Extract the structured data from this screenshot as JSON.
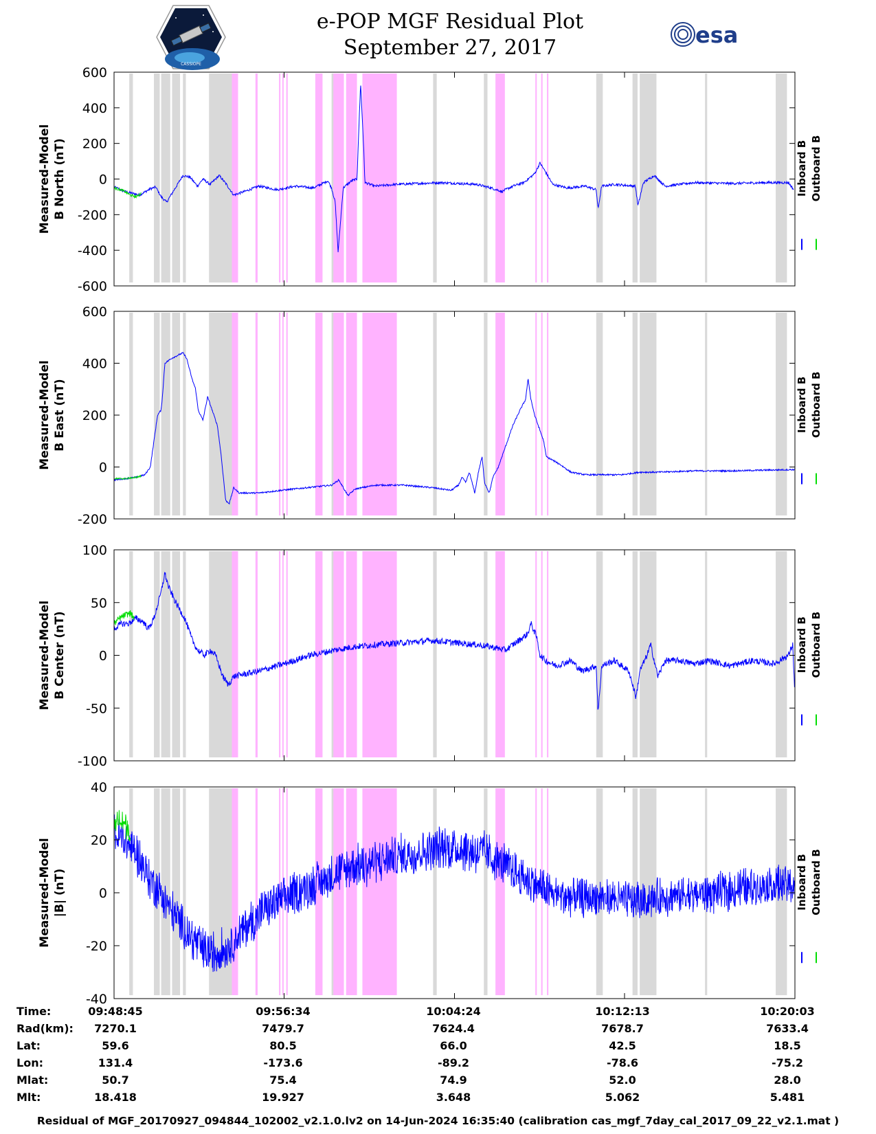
{
  "header": {
    "title_line1": "e-POP MGF Residual Plot",
    "title_line2": "September 27, 2017",
    "logo_left": "cassiope-mission-logo",
    "logo_left_text": "CASSIOPE",
    "logo_right": "esa-logo",
    "logo_right_text": "esa"
  },
  "colors": {
    "inboard": "#0000ff",
    "outboard": "#00dd00",
    "gray_band": "#d9d9d9",
    "magenta_band": "#ffb3ff"
  },
  "chart_data": {
    "type": "line",
    "x_range_seconds": [
      0,
      1878
    ],
    "x_ticks": [
      {
        "t": 0,
        "label": "09:48:45"
      },
      {
        "t": 469,
        "label": "09:56:34"
      },
      {
        "t": 939,
        "label": "10:04:24"
      },
      {
        "t": 1408,
        "label": "10:12:13"
      },
      {
        "t": 1878,
        "label": "10:20:03"
      }
    ],
    "legend": [
      "Inboard B",
      "Outboard B"
    ],
    "gray_bands": [
      [
        42,
        52
      ],
      [
        110,
        126
      ],
      [
        130,
        155
      ],
      [
        160,
        182
      ],
      [
        190,
        198
      ],
      [
        262,
        325
      ],
      [
        600,
        608
      ],
      [
        880,
        890
      ],
      [
        1020,
        1030
      ],
      [
        1330,
        1348
      ],
      [
        1430,
        1444
      ],
      [
        1450,
        1496
      ],
      [
        1630,
        1636
      ],
      [
        1825,
        1856
      ]
    ],
    "magenta_bands": [
      [
        325,
        342
      ],
      [
        390,
        396
      ],
      [
        455,
        459
      ],
      [
        464,
        467
      ],
      [
        475,
        479
      ],
      [
        555,
        575
      ],
      [
        605,
        634
      ],
      [
        640,
        670
      ],
      [
        685,
        780
      ],
      [
        1052,
        1078
      ],
      [
        1162,
        1166
      ],
      [
        1178,
        1182
      ],
      [
        1194,
        1198
      ]
    ],
    "panels": [
      {
        "name": "north",
        "ylabel": [
          "Measured-Model",
          "B North (nT)"
        ],
        "ylim": [
          -600,
          600
        ],
        "yticks": [
          600,
          400,
          200,
          0,
          -200,
          -400,
          -600
        ],
        "inboard": [
          [
            0,
            -45
          ],
          [
            30,
            -70
          ],
          [
            70,
            -90
          ],
          [
            100,
            -55
          ],
          [
            115,
            -45
          ],
          [
            130,
            -100
          ],
          [
            145,
            -130
          ],
          [
            160,
            -80
          ],
          [
            175,
            -30
          ],
          [
            190,
            20
          ],
          [
            210,
            10
          ],
          [
            230,
            -40
          ],
          [
            245,
            0
          ],
          [
            265,
            -30
          ],
          [
            290,
            20
          ],
          [
            310,
            -30
          ],
          [
            330,
            -90
          ],
          [
            360,
            -70
          ],
          [
            400,
            -40
          ],
          [
            450,
            -60
          ],
          [
            500,
            -40
          ],
          [
            550,
            -50
          ],
          [
            590,
            -10
          ],
          [
            600,
            -50
          ],
          [
            610,
            -130
          ],
          [
            618,
            -410
          ],
          [
            632,
            -50
          ],
          [
            655,
            -10
          ],
          [
            670,
            0
          ],
          [
            680,
            540
          ],
          [
            688,
            200
          ],
          [
            692,
            -20
          ],
          [
            720,
            -40
          ],
          [
            780,
            -30
          ],
          [
            900,
            -20
          ],
          [
            1000,
            -30
          ],
          [
            1040,
            -50
          ],
          [
            1070,
            -70
          ],
          [
            1100,
            -40
          ],
          [
            1130,
            -20
          ],
          [
            1160,
            30
          ],
          [
            1175,
            90
          ],
          [
            1190,
            40
          ],
          [
            1210,
            -30
          ],
          [
            1250,
            -50
          ],
          [
            1300,
            -40
          ],
          [
            1330,
            -60
          ],
          [
            1335,
            -170
          ],
          [
            1345,
            -40
          ],
          [
            1380,
            -30
          ],
          [
            1438,
            -40
          ],
          [
            1445,
            -150
          ],
          [
            1460,
            -20
          ],
          [
            1490,
            20
          ],
          [
            1520,
            -40
          ],
          [
            1600,
            -20
          ],
          [
            1700,
            -25
          ],
          [
            1800,
            -20
          ],
          [
            1860,
            -20
          ],
          [
            1875,
            -60
          ]
        ],
        "outboard": [
          [
            0,
            -50
          ],
          [
            25,
            -65
          ],
          [
            45,
            -90
          ],
          [
            60,
            -100
          ],
          [
            75,
            -80
          ]
        ],
        "noise": 14
      },
      {
        "name": "east",
        "ylabel": [
          "Measured-Model",
          "B East (nT)"
        ],
        "ylim": [
          -200,
          600
        ],
        "yticks": [
          600,
          400,
          200,
          0,
          -200
        ],
        "inboard": [
          [
            0,
            -50
          ],
          [
            60,
            -40
          ],
          [
            85,
            -30
          ],
          [
            100,
            0
          ],
          [
            110,
            100
          ],
          [
            120,
            200
          ],
          [
            130,
            220
          ],
          [
            135,
            300
          ],
          [
            140,
            400
          ],
          [
            160,
            420
          ],
          [
            190,
            440
          ],
          [
            200,
            420
          ],
          [
            215,
            340
          ],
          [
            225,
            300
          ],
          [
            232,
            220
          ],
          [
            245,
            180
          ],
          [
            258,
            270
          ],
          [
            268,
            230
          ],
          [
            285,
            160
          ],
          [
            295,
            50
          ],
          [
            303,
            -60
          ],
          [
            308,
            -130
          ],
          [
            318,
            -140
          ],
          [
            330,
            -80
          ],
          [
            345,
            -100
          ],
          [
            400,
            -100
          ],
          [
            460,
            -90
          ],
          [
            530,
            -80
          ],
          [
            600,
            -70
          ],
          [
            620,
            -50
          ],
          [
            645,
            -110
          ],
          [
            665,
            -85
          ],
          [
            720,
            -70
          ],
          [
            800,
            -70
          ],
          [
            880,
            -80
          ],
          [
            930,
            -90
          ],
          [
            950,
            -70
          ],
          [
            960,
            -40
          ],
          [
            970,
            -60
          ],
          [
            980,
            -20
          ],
          [
            995,
            -100
          ],
          [
            1005,
            -20
          ],
          [
            1015,
            40
          ],
          [
            1022,
            -60
          ],
          [
            1035,
            -100
          ],
          [
            1045,
            -40
          ],
          [
            1060,
            0
          ],
          [
            1080,
            80
          ],
          [
            1100,
            160
          ],
          [
            1120,
            220
          ],
          [
            1135,
            260
          ],
          [
            1142,
            340
          ],
          [
            1150,
            260
          ],
          [
            1160,
            200
          ],
          [
            1170,
            160
          ],
          [
            1185,
            100
          ],
          [
            1192,
            40
          ],
          [
            1205,
            30
          ],
          [
            1230,
            10
          ],
          [
            1260,
            -20
          ],
          [
            1300,
            -30
          ],
          [
            1350,
            -30
          ],
          [
            1400,
            -30
          ],
          [
            1450,
            -20
          ],
          [
            1500,
            -20
          ],
          [
            1600,
            -15
          ],
          [
            1700,
            -15
          ],
          [
            1800,
            -12
          ],
          [
            1878,
            -10
          ]
        ],
        "outboard": [
          [
            0,
            -45
          ],
          [
            30,
            -45
          ],
          [
            60,
            -40
          ],
          [
            75,
            -35
          ]
        ],
        "noise": 6
      },
      {
        "name": "center",
        "ylabel": [
          "Measured-Model",
          "B Center (nT)"
        ],
        "ylim": [
          -100,
          100
        ],
        "yticks": [
          100,
          50,
          0,
          -50,
          -100
        ],
        "inboard": [
          [
            0,
            25
          ],
          [
            20,
            30
          ],
          [
            40,
            30
          ],
          [
            60,
            35
          ],
          [
            80,
            32
          ],
          [
            95,
            25
          ],
          [
            110,
            35
          ],
          [
            130,
            60
          ],
          [
            140,
            78
          ],
          [
            150,
            65
          ],
          [
            170,
            50
          ],
          [
            195,
            35
          ],
          [
            215,
            15
          ],
          [
            230,
            5
          ],
          [
            250,
            0
          ],
          [
            265,
            5
          ],
          [
            280,
            0
          ],
          [
            300,
            -20
          ],
          [
            315,
            -28
          ],
          [
            330,
            -20
          ],
          [
            400,
            -15
          ],
          [
            470,
            -8
          ],
          [
            540,
            0
          ],
          [
            610,
            5
          ],
          [
            660,
            8
          ],
          [
            720,
            10
          ],
          [
            800,
            12
          ],
          [
            880,
            14
          ],
          [
            940,
            12
          ],
          [
            1000,
            10
          ],
          [
            1040,
            8
          ],
          [
            1080,
            5
          ],
          [
            1100,
            10
          ],
          [
            1140,
            20
          ],
          [
            1150,
            30
          ],
          [
            1165,
            18
          ],
          [
            1175,
            0
          ],
          [
            1190,
            -5
          ],
          [
            1220,
            -10
          ],
          [
            1260,
            -5
          ],
          [
            1290,
            -15
          ],
          [
            1330,
            -10
          ],
          [
            1335,
            -55
          ],
          [
            1345,
            -10
          ],
          [
            1380,
            -5
          ],
          [
            1420,
            -15
          ],
          [
            1440,
            -40
          ],
          [
            1450,
            -15
          ],
          [
            1470,
            0
          ],
          [
            1480,
            10
          ],
          [
            1500,
            -20
          ],
          [
            1520,
            -5
          ],
          [
            1560,
            -5
          ],
          [
            1600,
            -8
          ],
          [
            1640,
            -5
          ],
          [
            1700,
            -10
          ],
          [
            1760,
            -5
          ],
          [
            1820,
            -8
          ],
          [
            1860,
            0
          ],
          [
            1872,
            10
          ],
          [
            1878,
            -40
          ]
        ],
        "outboard": [
          [
            0,
            30
          ],
          [
            15,
            35
          ],
          [
            30,
            38
          ],
          [
            45,
            40
          ],
          [
            55,
            35
          ]
        ],
        "noise": 6
      },
      {
        "name": "total",
        "ylabel": [
          "Measured-Model",
          "|B| (nT)"
        ],
        "ylim": [
          -40,
          40
        ],
        "yticks": [
          40,
          20,
          0,
          -20,
          -40
        ],
        "inboard": [
          [
            0,
            22
          ],
          [
            30,
            20
          ],
          [
            60,
            15
          ],
          [
            100,
            5
          ],
          [
            150,
            -5
          ],
          [
            200,
            -15
          ],
          [
            250,
            -22
          ],
          [
            280,
            -23
          ],
          [
            320,
            -20
          ],
          [
            370,
            -12
          ],
          [
            430,
            -5
          ],
          [
            500,
            0
          ],
          [
            580,
            5
          ],
          [
            660,
            10
          ],
          [
            740,
            12
          ],
          [
            820,
            15
          ],
          [
            900,
            17
          ],
          [
            960,
            17
          ],
          [
            1020,
            15
          ],
          [
            1080,
            10
          ],
          [
            1140,
            5
          ],
          [
            1200,
            0
          ],
          [
            1260,
            -2
          ],
          [
            1340,
            -2
          ],
          [
            1420,
            -3
          ],
          [
            1500,
            -2
          ],
          [
            1580,
            -1
          ],
          [
            1660,
            0
          ],
          [
            1740,
            2
          ],
          [
            1820,
            3
          ],
          [
            1878,
            3
          ]
        ],
        "outboard": [
          [
            0,
            25
          ],
          [
            15,
            28
          ],
          [
            30,
            26
          ],
          [
            45,
            22
          ]
        ],
        "noise": 4
      }
    ]
  },
  "meta": {
    "labels": [
      "Time:",
      "Rad(km):",
      "Lat:",
      "Lon:",
      "Mlat:",
      "Mlt:"
    ],
    "columns": [
      [
        "09:48:45",
        "7270.1",
        "59.6",
        "131.4",
        "50.7",
        "18.418"
      ],
      [
        "09:56:34",
        "7479.7",
        "80.5",
        "-173.6",
        "75.4",
        "19.927"
      ],
      [
        "10:04:24",
        "7624.4",
        "66.0",
        "-89.2",
        "74.9",
        "3.648"
      ],
      [
        "10:12:13",
        "7678.7",
        "42.5",
        "-78.6",
        "52.0",
        "5.062"
      ],
      [
        "10:20:03",
        "7633.4",
        "18.5",
        "-75.2",
        "28.0",
        "5.481"
      ]
    ]
  },
  "footer": "Residual of MGF_20170927_094844_102002_v2.1.0.lv2 on 14-Jun-2024 16:35:40 (calibration cas_mgf_7day_cal_2017_09_22_v2.1.mat )"
}
